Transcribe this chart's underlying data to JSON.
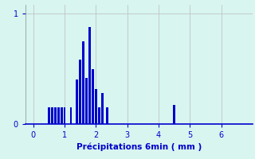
{
  "title": "",
  "xlabel": "Précipitations 6min ( mm )",
  "ylabel": "",
  "background_color": "#d8f5f0",
  "bar_color": "#0000cc",
  "xlim": [
    -0.25,
    7.0
  ],
  "ylim": [
    0,
    1.08
  ],
  "yticks": [
    0,
    1
  ],
  "xticks": [
    0,
    1,
    2,
    3,
    4,
    5,
    6
  ],
  "grid_color": "#bbbbbb",
  "bar_positions": [
    0.5,
    0.6,
    0.7,
    0.8,
    0.9,
    1.0,
    1.2,
    1.4,
    1.5,
    1.6,
    1.7,
    1.8,
    1.9,
    2.0,
    2.1,
    2.2,
    2.35,
    4.5
  ],
  "bar_heights": [
    0.15,
    0.15,
    0.15,
    0.15,
    0.15,
    0.15,
    0.15,
    0.4,
    0.58,
    0.75,
    0.42,
    0.88,
    0.5,
    0.32,
    0.15,
    0.28,
    0.15,
    0.17
  ],
  "bar_width": 0.07
}
